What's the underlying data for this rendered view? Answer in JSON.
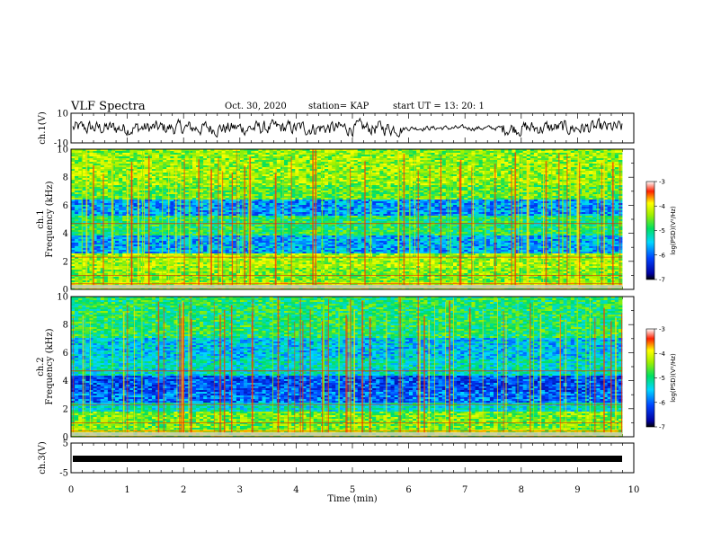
{
  "header": {
    "title": "VLF Spectra",
    "date": "Oct. 30, 2020",
    "station": "station= KAP",
    "start": "start  UT  =   13: 20: 1"
  },
  "colorbar": {
    "label": "log(PSD)(V²/Hz)",
    "ticks": [
      "-3",
      "-4",
      "-5",
      "-6",
      "-7"
    ],
    "range": [
      -7,
      -3
    ]
  },
  "chart_data": [
    {
      "type": "line",
      "ylabel": "ch.1(V)",
      "ylim": [
        -10,
        10
      ],
      "yticks": [
        "10",
        "-10"
      ],
      "xlim": [
        0,
        10
      ],
      "description": "waveform"
    },
    {
      "type": "heatmap",
      "ylabel": "ch.1",
      "ylabel2": "Frequency  (kHz)",
      "ylim": [
        0,
        10
      ],
      "yticks": [
        "0",
        "2",
        "4",
        "6",
        "8",
        "10"
      ],
      "xlim": [
        0,
        10
      ]
    },
    {
      "type": "heatmap",
      "ylabel": "ch.2",
      "ylabel2": "Frequency  (kHz)",
      "ylim": [
        0,
        10
      ],
      "yticks": [
        "0",
        "2",
        "4",
        "6",
        "8",
        "10"
      ],
      "xlim": [
        0,
        10
      ]
    },
    {
      "type": "line",
      "ylabel": "ch.3(V)",
      "ylim": [
        -5,
        5
      ],
      "yticks": [
        "5",
        "-5"
      ],
      "xlim": [
        0,
        10
      ],
      "xticks": [
        "0",
        "1",
        "2",
        "3",
        "4",
        "5",
        "6",
        "7",
        "8",
        "9",
        "10"
      ],
      "xlabel": "Time  (min)"
    }
  ]
}
